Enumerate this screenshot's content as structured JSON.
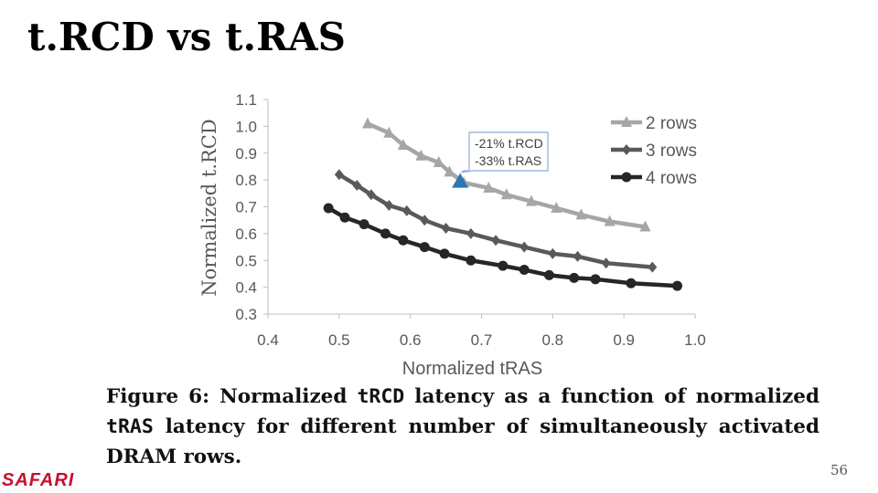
{
  "slide": {
    "title": "t.RCD vs t.RAS",
    "caption": {
      "p1": "Figure 6: Normalized ",
      "m1": "tRCD",
      "p2": " latency as a function of normalized ",
      "m2": "tRAS",
      "p3": " latency for different number of simultaneously activated DRAM rows."
    },
    "logo": "SAFARI",
    "page_number": "56"
  },
  "chart_data": {
    "type": "line",
    "xlabel": "Normalized tRAS",
    "ylabel": "Normalized t.RCD",
    "xlim": [
      0.4,
      1.0
    ],
    "ylim": [
      0.3,
      1.1
    ],
    "xticks": [
      "0.4",
      "0.5",
      "0.6",
      "0.7",
      "0.8",
      "0.9",
      "1.0"
    ],
    "yticks": [
      "0.3",
      "0.4",
      "0.5",
      "0.6",
      "0.7",
      "0.8",
      "0.9",
      "1.0",
      "1.1"
    ],
    "legend_position": "top-right",
    "grid": false,
    "series": [
      {
        "name": "2 rows",
        "color": "#a6a6a6",
        "marker": "triangle",
        "x": [
          0.54,
          0.57,
          0.59,
          0.615,
          0.64,
          0.655,
          0.675,
          0.71,
          0.735,
          0.77,
          0.805,
          0.84,
          0.88,
          0.93
        ],
        "y": [
          1.01,
          0.975,
          0.93,
          0.89,
          0.865,
          0.83,
          0.79,
          0.77,
          0.745,
          0.72,
          0.695,
          0.67,
          0.645,
          0.625
        ]
      },
      {
        "name": "3 rows",
        "color": "#595959",
        "marker": "diamond",
        "x": [
          0.5,
          0.525,
          0.545,
          0.57,
          0.595,
          0.62,
          0.65,
          0.685,
          0.72,
          0.76,
          0.8,
          0.835,
          0.875,
          0.94
        ],
        "y": [
          0.82,
          0.78,
          0.745,
          0.705,
          0.685,
          0.65,
          0.62,
          0.6,
          0.575,
          0.55,
          0.525,
          0.515,
          0.49,
          0.475
        ]
      },
      {
        "name": "4 rows",
        "color": "#262626",
        "marker": "circle",
        "x": [
          0.485,
          0.508,
          0.535,
          0.565,
          0.59,
          0.62,
          0.648,
          0.685,
          0.73,
          0.76,
          0.795,
          0.83,
          0.86,
          0.91,
          0.975
        ],
        "y": [
          0.695,
          0.66,
          0.635,
          0.6,
          0.575,
          0.55,
          0.525,
          0.5,
          0.48,
          0.465,
          0.445,
          0.435,
          0.43,
          0.415,
          0.405
        ]
      }
    ],
    "annotation": {
      "lines": [
        "-21% t.RCD",
        "-33% t.RAS"
      ],
      "point": {
        "x": 0.67,
        "y": 0.795
      },
      "marker_color": "#2e75b6"
    }
  }
}
